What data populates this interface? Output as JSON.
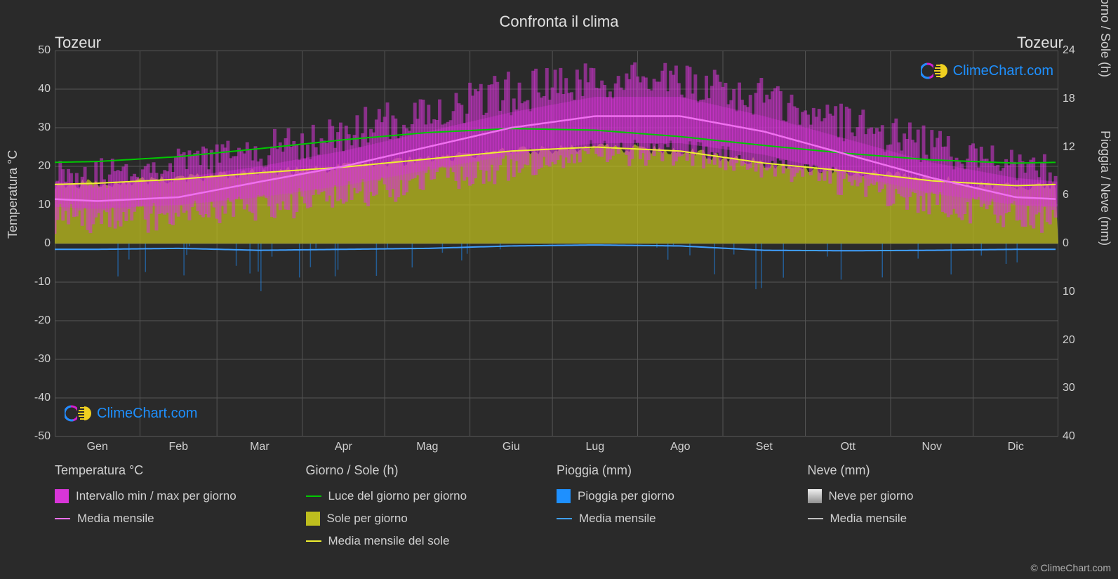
{
  "title": "Confronta il clima",
  "location_left": "Tozeur",
  "location_right": "Tozeur",
  "axis_left_label": "Temperatura °C",
  "axis_right_label_top": "Giorno / Sole (h)",
  "axis_right_label_bottom": "Pioggia / Neve (mm)",
  "credit": "© ClimeChart.com",
  "brand_text": "ClimeChart.com",
  "months": [
    "Gen",
    "Feb",
    "Mar",
    "Apr",
    "Mag",
    "Giu",
    "Lug",
    "Ago",
    "Set",
    "Ott",
    "Nov",
    "Dic"
  ],
  "y_left": {
    "min": -50,
    "max": 50,
    "step": 10,
    "ticks": [
      50,
      40,
      30,
      20,
      10,
      0,
      -10,
      -20,
      -30,
      -40,
      -50
    ]
  },
  "y_right_top": {
    "min": 0,
    "max": 24,
    "step": 6,
    "ticks": [
      24,
      18,
      12,
      6,
      0
    ]
  },
  "y_right_bottom": {
    "min": 0,
    "max": 40,
    "step": 10,
    "ticks": [
      0,
      10,
      20,
      30,
      40
    ]
  },
  "colors": {
    "bg": "#2a2a2a",
    "grid": "#555555",
    "grid_minor": "#3a3a3a",
    "text": "#d0d0d0",
    "temp_range": "#d835d8",
    "temp_range_fill": "rgba(216,53,216,0.55)",
    "temp_mean": "#f070f0",
    "daylight": "#00c800",
    "sun_fill": "rgba(190,190,30,0.75)",
    "sun_mean": "#f0f030",
    "rain_daily": "#1e90ff",
    "rain_mean": "#40a0ff",
    "snow_daily": "#f0f0f0",
    "snow_mean": "#c0c0c0",
    "brand_blue": "#1e90ff",
    "brand_magenta": "#d020d0",
    "brand_yellow": "#f0d020"
  },
  "series": {
    "temp_min_lo": [
      2,
      3,
      5,
      8,
      12,
      16,
      20,
      20,
      17,
      12,
      7,
      3
    ],
    "temp_min_hi": [
      10,
      11,
      13,
      16,
      20,
      24,
      27,
      27,
      24,
      19,
      14,
      11
    ],
    "temp_max_lo": [
      14,
      16,
      19,
      23,
      28,
      33,
      37,
      37,
      32,
      26,
      20,
      16
    ],
    "temp_max_hi": [
      22,
      25,
      29,
      34,
      40,
      45,
      47,
      47,
      43,
      37,
      30,
      24
    ],
    "temp_mean": [
      11,
      12,
      16,
      20,
      25,
      30,
      33,
      33,
      29,
      23,
      17,
      12
    ],
    "daylight_h": [
      10.2,
      10.8,
      11.8,
      12.9,
      13.8,
      14.3,
      14.1,
      13.3,
      12.2,
      11.2,
      10.4,
      10.0
    ],
    "sun_h": [
      7.5,
      8.0,
      8.8,
      9.5,
      10.5,
      11.5,
      12.0,
      11.5,
      10.0,
      9.0,
      8.0,
      7.0
    ],
    "sun_mean_h": [
      7.5,
      8.0,
      8.8,
      9.5,
      10.5,
      11.5,
      12.0,
      11.5,
      10.0,
      9.0,
      7.8,
      7.2
    ],
    "rain_mean_mm": [
      1.2,
      1.0,
      1.4,
      1.2,
      1.0,
      0.5,
      0.3,
      0.5,
      1.4,
      1.5,
      1.4,
      1.2
    ],
    "rain_daily_max_mm": [
      8,
      7,
      10,
      9,
      6,
      4,
      2,
      4,
      12,
      9,
      8,
      7
    ]
  },
  "legend": {
    "temp": {
      "header": "Temperatura °C",
      "range": "Intervallo min / max per giorno",
      "mean": "Media mensile"
    },
    "daysun": {
      "header": "Giorno / Sole (h)",
      "daylight": "Luce del giorno per giorno",
      "sun": "Sole per giorno",
      "sun_mean": "Media mensile del sole"
    },
    "rain": {
      "header": "Pioggia (mm)",
      "daily": "Pioggia per giorno",
      "mean": "Media mensile"
    },
    "snow": {
      "header": "Neve (mm)",
      "daily": "Neve per giorno",
      "mean": "Media mensile"
    }
  }
}
